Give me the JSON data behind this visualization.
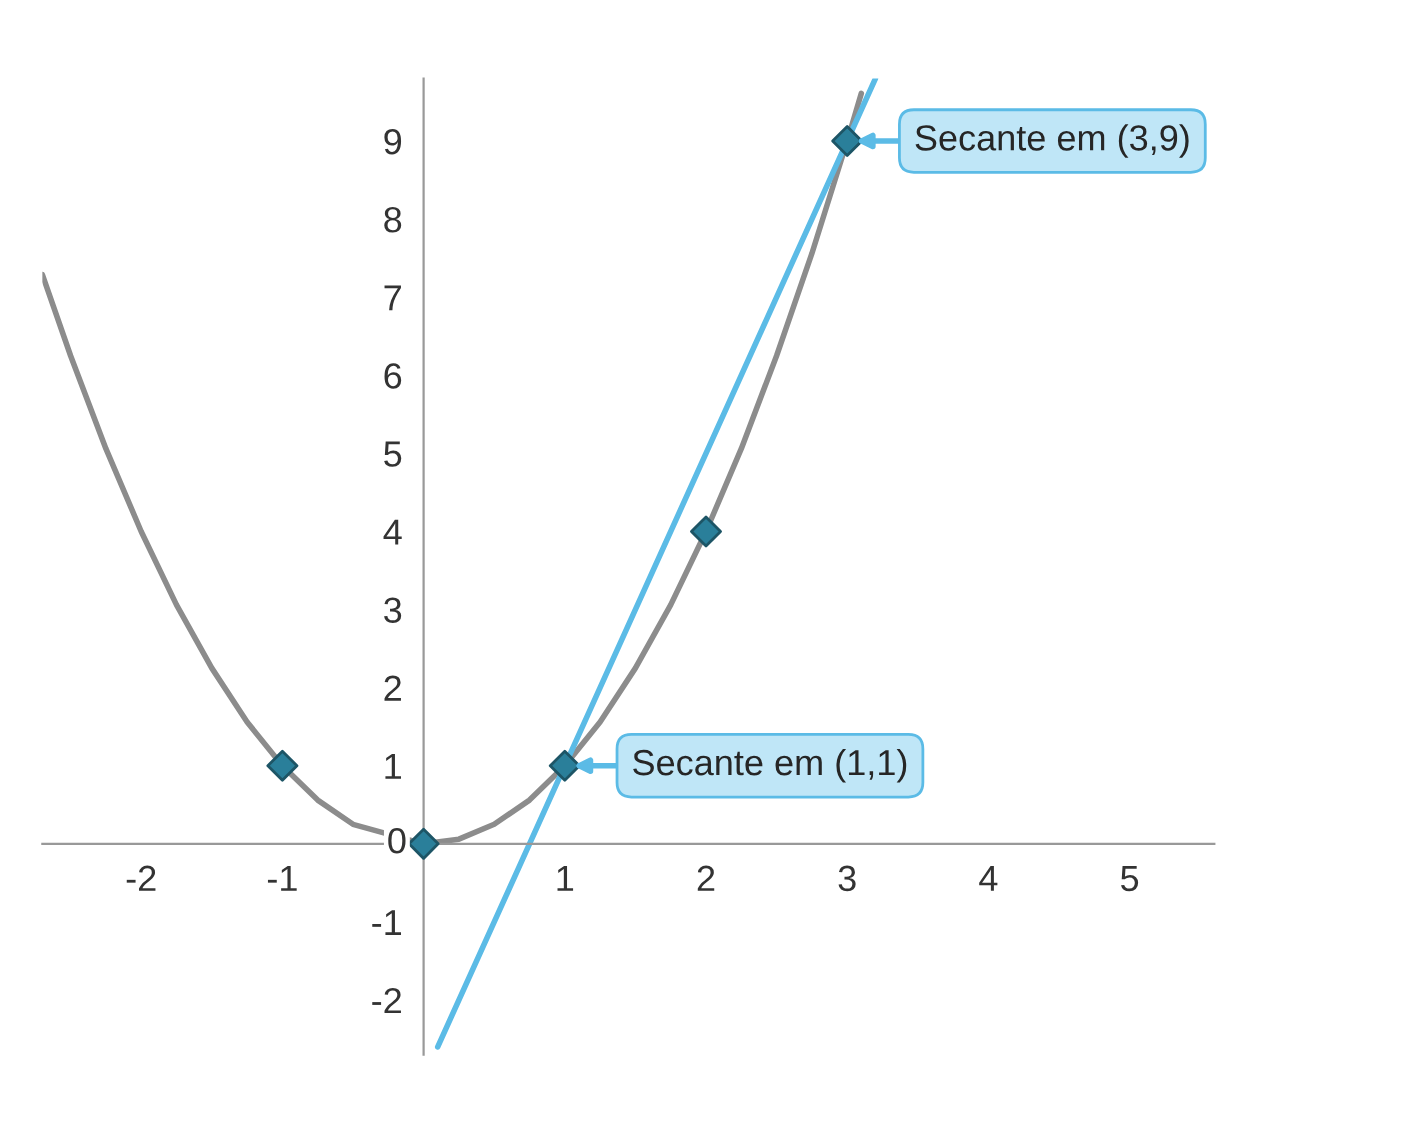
{
  "chart_data": {
    "type": "line",
    "xlim": [
      -2.7,
      5.6
    ],
    "ylim": [
      -2.7,
      9.8
    ],
    "xticks": [
      -2,
      -1,
      1,
      2,
      3,
      4,
      5
    ],
    "yticks": [
      -2,
      -1,
      0,
      1,
      2,
      3,
      4,
      5,
      6,
      7,
      8,
      9
    ],
    "grid": false,
    "series": [
      {
        "color": "#8c8c8c",
        "marker": "none",
        "x": [
          -2.7,
          -2.5,
          -2.25,
          -2,
          -1.75,
          -1.5,
          -1.25,
          -1,
          -0.75,
          -0.5,
          0,
          0.25,
          0.5,
          0.75,
          1,
          1.25,
          1.5,
          1.75,
          2,
          2.25,
          2.5,
          2.75,
          3,
          3.1
        ],
        "values": [
          7.29,
          6.25,
          5.06,
          4,
          3.06,
          2.25,
          1.56,
          1,
          0.56,
          0.25,
          0,
          0.06,
          0.25,
          0.56,
          1,
          1.56,
          2.25,
          3.06,
          4,
          5.06,
          6.25,
          7.56,
          9,
          9.61
        ]
      },
      {
        "type": "scatter",
        "color": "#2a7f9a",
        "marker": "diamond",
        "x": [
          -1,
          0,
          1,
          2,
          3
        ],
        "values": [
          1,
          0,
          1,
          4,
          9
        ]
      },
      {
        "color": "#5bbbe6",
        "marker": "none",
        "x": [
          0.1,
          3.2
        ],
        "values": [
          -2.6,
          9.8
        ]
      }
    ],
    "annotations": [
      {
        "text": "Secante em (3,9)",
        "x": 3,
        "y": 9
      },
      {
        "text": "Secante em (1,1)",
        "x": 1,
        "y": 1
      }
    ]
  }
}
